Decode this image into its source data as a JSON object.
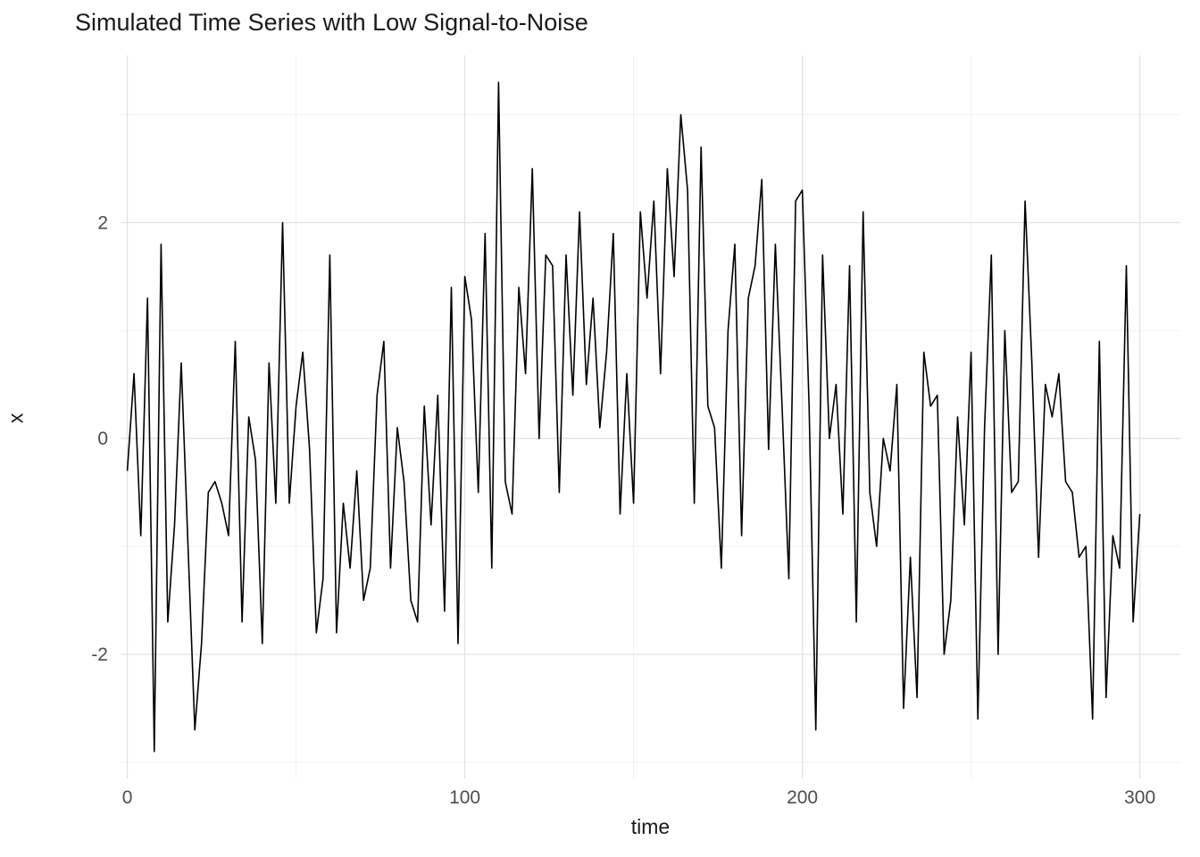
{
  "chart": {
    "title": "Simulated Time Series with Low Signal-to-Noise",
    "xlabel": "time",
    "ylabel": "x"
  },
  "chart_data": {
    "type": "line",
    "title": "Simulated Time Series with Low Signal-to-Noise",
    "xlabel": "time",
    "ylabel": "x",
    "grid": true,
    "legend": "none",
    "line_color": "#000000",
    "grid_major_color": "#e3e3e3",
    "grid_minor_color": "#efefef",
    "tick_label_color": "#4d4d4d",
    "x_ticks": [
      0,
      100,
      200,
      300
    ],
    "x_minor_ticks": [
      50,
      150,
      250
    ],
    "y_ticks": [
      -2,
      0,
      2
    ],
    "y_minor_ticks": [
      -3,
      -1,
      1,
      3
    ],
    "xlim": [
      -2,
      312
    ],
    "ylim": [
      -3.15,
      3.55
    ],
    "x_start": 0,
    "x_step": 2,
    "series": [
      {
        "name": "x",
        "values": [
          -0.3,
          0.6,
          -0.9,
          1.3,
          -2.9,
          1.8,
          -1.7,
          -0.8,
          0.7,
          -1.0,
          -2.7,
          -1.9,
          -0.5,
          -0.4,
          -0.6,
          -0.9,
          0.9,
          -1.7,
          0.2,
          -0.2,
          -1.9,
          0.7,
          -0.6,
          2.0,
          -0.6,
          0.3,
          0.8,
          -0.1,
          -1.8,
          -1.3,
          1.7,
          -1.8,
          -0.6,
          -1.2,
          -0.3,
          -1.5,
          -1.2,
          0.4,
          0.9,
          -1.2,
          0.1,
          -0.4,
          -1.5,
          -1.7,
          0.3,
          -0.8,
          0.4,
          -1.6,
          1.4,
          -1.9,
          1.5,
          1.1,
          -0.5,
          1.9,
          -1.2,
          3.3,
          -0.4,
          -0.7,
          1.4,
          0.6,
          2.5,
          0.0,
          1.7,
          1.6,
          -0.5,
          1.7,
          0.4,
          2.1,
          0.5,
          1.3,
          0.1,
          0.8,
          1.9,
          -0.7,
          0.6,
          -0.6,
          2.1,
          1.3,
          2.2,
          0.6,
          2.5,
          1.5,
          3.0,
          2.3,
          -0.6,
          2.7,
          0.3,
          0.1,
          -1.2,
          1.0,
          1.8,
          -0.9,
          1.3,
          1.6,
          2.4,
          -0.1,
          1.8,
          0.3,
          -1.3,
          2.2,
          2.3,
          0.3,
          -2.7,
          1.7,
          0.0,
          0.5,
          -0.7,
          1.6,
          -1.7,
          2.1,
          -0.5,
          -1.0,
          0.0,
          -0.3,
          0.5,
          -2.5,
          -1.1,
          -2.4,
          0.8,
          0.3,
          0.4,
          -2.0,
          -1.5,
          0.2,
          -0.8,
          0.8,
          -2.6,
          0.1,
          1.7,
          -2.0,
          1.0,
          -0.5,
          -0.4,
          2.2,
          0.7,
          -1.1,
          0.5,
          0.2,
          0.6,
          -0.4,
          -0.5,
          -1.1,
          -1.0,
          -2.6,
          0.9,
          -2.4,
          -0.9,
          -1.2,
          1.6,
          -1.7,
          -0.7
        ]
      }
    ]
  }
}
